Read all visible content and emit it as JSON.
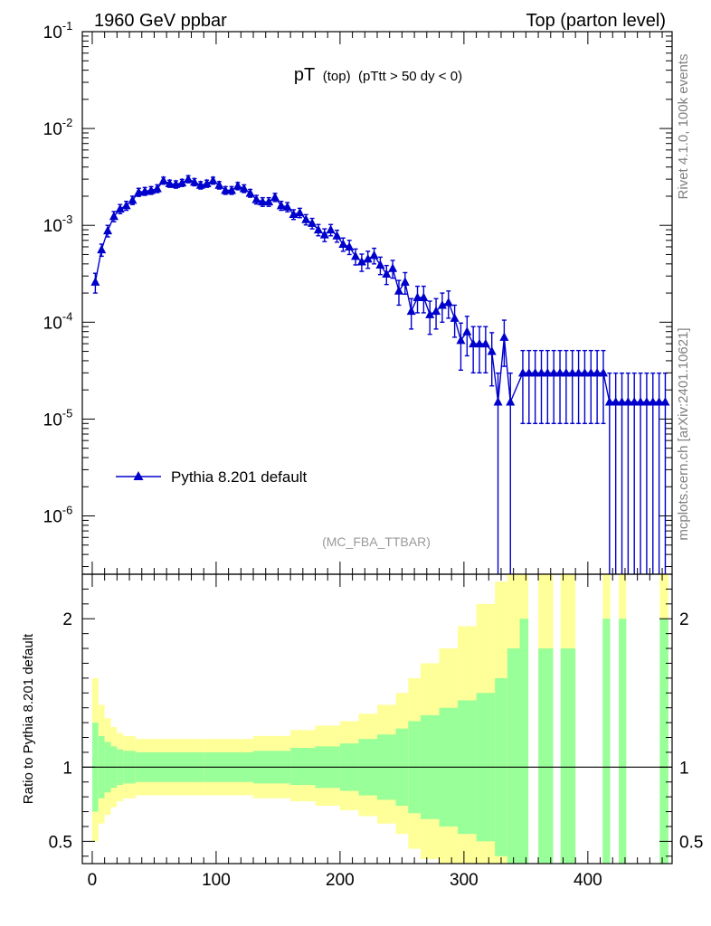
{
  "header": {
    "left": "1960 GeV ppbar",
    "right": "Top (parton level)"
  },
  "side_labels": {
    "rivet": "Rivet 4.1.0,  100k events",
    "mcplots": "mcplots.cern.ch [arXiv:2401.10621]"
  },
  "analysis_tag": "(MC_FBA_TTBAR)",
  "colors": {
    "series": "#0000cc",
    "band_inner": "#99ff99",
    "band_outer": "#ffff99",
    "axis": "#000000",
    "side_text": "#808080"
  },
  "chart_data": [
    {
      "type": "line",
      "title_main": "pT",
      "title_sub": "(top)",
      "title_cut": "(pTtt > 50 dy < 0)",
      "xlabel": "",
      "ylabel": "",
      "yscale": "log",
      "xlim": [
        -8,
        468
      ],
      "ylim": [
        2.5e-07,
        0.1
      ],
      "ytick_labels": [
        "10^-6",
        "10^-5",
        "10^-4",
        "10^-3",
        "10^-2",
        "10^-1"
      ],
      "legend": {
        "label": "Pythia 8.201 default",
        "position": "lower-left"
      },
      "series": [
        {
          "name": "Pythia 8.201 default",
          "points": [
            [
              2.5,
              0.00026,
              6e-05
            ],
            [
              7.5,
              0.00056,
              8e-05
            ],
            [
              12.5,
              0.00088,
              0.00012
            ],
            [
              17.5,
              0.00124,
              0.00015
            ],
            [
              22.5,
              0.00148,
              0.00016
            ],
            [
              27.5,
              0.0016,
              0.00017
            ],
            [
              32.5,
              0.00182,
              0.00018
            ],
            [
              37.5,
              0.0022,
              0.00021
            ],
            [
              42.5,
              0.00225,
              0.00021
            ],
            [
              47.5,
              0.0023,
              0.00021
            ],
            [
              52.5,
              0.0024,
              0.00022
            ],
            [
              57.5,
              0.0029,
              0.00024
            ],
            [
              62.5,
              0.0027,
              0.00023
            ],
            [
              67.5,
              0.00265,
              0.00023
            ],
            [
              72.5,
              0.00275,
              0.00023
            ],
            [
              77.5,
              0.003,
              0.00025
            ],
            [
              82.5,
              0.0028,
              0.00024
            ],
            [
              87.5,
              0.0026,
              0.00023
            ],
            [
              92.5,
              0.0027,
              0.00023
            ],
            [
              97.5,
              0.0029,
              0.00024
            ],
            [
              102.5,
              0.0026,
              0.00023
            ],
            [
              107.5,
              0.0023,
              0.00021
            ],
            [
              112.5,
              0.0023,
              0.00021
            ],
            [
              117.5,
              0.00255,
              0.00022
            ],
            [
              122.5,
              0.0024,
              0.00022
            ],
            [
              127.5,
              0.00215,
              0.0002
            ],
            [
              132.5,
              0.00185,
              0.00019
            ],
            [
              137.5,
              0.00175,
              0.00018
            ],
            [
              142.5,
              0.00175,
              0.00018
            ],
            [
              147.5,
              0.00195,
              0.00019
            ],
            [
              152.5,
              0.0016,
              0.00017
            ],
            [
              157.5,
              0.00155,
              0.00017
            ],
            [
              162.5,
              0.0013,
              0.00015
            ],
            [
              167.5,
              0.00135,
              0.00015
            ],
            [
              172.5,
              0.00115,
              0.00014
            ],
            [
              177.5,
              0.00105,
              0.00013
            ],
            [
              182.5,
              0.0009,
              0.00012
            ],
            [
              187.5,
              0.0008,
              0.00012
            ],
            [
              192.5,
              0.0009,
              0.00012
            ],
            [
              197.5,
              0.00078,
              0.00011
            ],
            [
              202.5,
              0.00064,
              0.0001
            ],
            [
              207.5,
              0.0006,
              0.0001
            ],
            [
              212.5,
              0.00048,
              9e-05
            ],
            [
              217.5,
              0.00042,
              8.5e-05
            ],
            [
              222.5,
              0.00045,
              9e-05
            ],
            [
              227.5,
              0.00049,
              9e-05
            ],
            [
              232.5,
              0.00039,
              8e-05
            ],
            [
              237.5,
              0.000315,
              7e-05
            ],
            [
              242.5,
              0.00036,
              7.5e-05
            ],
            [
              247.5,
              0.00021,
              6e-05
            ],
            [
              252.5,
              0.00026,
              6.5e-05
            ],
            [
              257.5,
              0.00013,
              4.5e-05
            ],
            [
              262.5,
              0.00018,
              5.5e-05
            ],
            [
              267.5,
              0.00018,
              5.5e-05
            ],
            [
              272.5,
              0.00012,
              4.5e-05
            ],
            [
              277.5,
              0.00013,
              4.5e-05
            ],
            [
              282.5,
              0.00015,
              5e-05
            ],
            [
              287.5,
              0.00016,
              5e-05
            ],
            [
              292.5,
              0.00011,
              4e-05
            ],
            [
              297.5,
              6.5e-05,
              3.3e-05
            ],
            [
              302.5,
              8e-05,
              3.5e-05
            ],
            [
              307.5,
              6e-05,
              3e-05
            ],
            [
              312.5,
              6e-05,
              3e-05
            ],
            [
              317.5,
              6e-05,
              3e-05
            ],
            [
              322.5,
              5e-05,
              2.8e-05
            ],
            [
              327.5,
              1.5e-05,
              1.48e-05
            ],
            [
              332.5,
              7e-05,
              3.5e-05
            ],
            [
              337.5,
              1.5e-05,
              1.48e-05
            ],
            [
              347.5,
              3e-05,
              2.1e-05
            ],
            [
              352.5,
              3e-05,
              2.1e-05
            ],
            [
              357.5,
              3e-05,
              2.1e-05
            ],
            [
              362.5,
              3e-05,
              2.1e-05
            ],
            [
              367.5,
              3e-05,
              2.1e-05
            ],
            [
              372.5,
              3e-05,
              2.1e-05
            ],
            [
              377.5,
              3e-05,
              2.1e-05
            ],
            [
              382.5,
              3e-05,
              2.1e-05
            ],
            [
              387.5,
              3e-05,
              2.1e-05
            ],
            [
              392.5,
              3e-05,
              2.1e-05
            ],
            [
              397.5,
              3e-05,
              2.1e-05
            ],
            [
              402.5,
              3e-05,
              2.1e-05
            ],
            [
              407.5,
              3e-05,
              2.1e-05
            ],
            [
              412.5,
              3e-05,
              2.1e-05
            ],
            [
              417.5,
              1.5e-05,
              1.48e-05
            ],
            [
              422.5,
              1.5e-05,
              1.48e-05
            ],
            [
              427.5,
              1.5e-05,
              1.48e-05
            ],
            [
              432.5,
              1.5e-05,
              1.48e-05
            ],
            [
              437.5,
              1.5e-05,
              1.48e-05
            ],
            [
              442.5,
              1.5e-05,
              1.48e-05
            ],
            [
              447.5,
              1.5e-05,
              1.48e-05
            ],
            [
              452.5,
              1.5e-05,
              1.48e-05
            ],
            [
              457.5,
              1.5e-05,
              1.48e-05
            ],
            [
              462.5,
              1.5e-05,
              1.48e-05
            ]
          ]
        }
      ]
    },
    {
      "type": "area",
      "ylabel": "Ratio to Pythia 8.201 default",
      "xlabel": "",
      "xlim": [
        -8,
        468
      ],
      "ylim": [
        0.35,
        2.3
      ],
      "xticks": [
        0,
        100,
        200,
        300,
        400
      ],
      "yticks": [
        0.5,
        1,
        2
      ],
      "ytick_labels": [
        "0.5",
        "1",
        "2"
      ],
      "reference_line": 1,
      "bins": [
        {
          "x": [
            0,
            5
          ],
          "inner": [
            0.7,
            1.3
          ],
          "outer": [
            0.5,
            1.6
          ]
        },
        {
          "x": [
            5,
            10
          ],
          "inner": [
            0.79,
            1.21
          ],
          "outer": [
            0.62,
            1.42
          ]
        },
        {
          "x": [
            10,
            15
          ],
          "inner": [
            0.83,
            1.17
          ],
          "outer": [
            0.68,
            1.33
          ]
        },
        {
          "x": [
            15,
            20
          ],
          "inner": [
            0.86,
            1.14
          ],
          "outer": [
            0.73,
            1.27
          ]
        },
        {
          "x": [
            20,
            25
          ],
          "inner": [
            0.88,
            1.12
          ],
          "outer": [
            0.77,
            1.23
          ]
        },
        {
          "x": [
            25,
            35
          ],
          "inner": [
            0.89,
            1.11
          ],
          "outer": [
            0.79,
            1.21
          ]
        },
        {
          "x": [
            35,
            90
          ],
          "inner": [
            0.9,
            1.1
          ],
          "outer": [
            0.81,
            1.19
          ]
        },
        {
          "x": [
            90,
            130
          ],
          "inner": [
            0.9,
            1.1
          ],
          "outer": [
            0.81,
            1.19
          ]
        },
        {
          "x": [
            130,
            160
          ],
          "inner": [
            0.89,
            1.11
          ],
          "outer": [
            0.79,
            1.21
          ]
        },
        {
          "x": [
            160,
            180
          ],
          "inner": [
            0.88,
            1.13
          ],
          "outer": [
            0.77,
            1.25
          ]
        },
        {
          "x": [
            180,
            200
          ],
          "inner": [
            0.86,
            1.14
          ],
          "outer": [
            0.74,
            1.28
          ]
        },
        {
          "x": [
            200,
            215
          ],
          "inner": [
            0.84,
            1.16
          ],
          "outer": [
            0.71,
            1.31
          ]
        },
        {
          "x": [
            215,
            230
          ],
          "inner": [
            0.81,
            1.19
          ],
          "outer": [
            0.67,
            1.36
          ]
        },
        {
          "x": [
            230,
            245
          ],
          "inner": [
            0.78,
            1.22
          ],
          "outer": [
            0.62,
            1.42
          ]
        },
        {
          "x": [
            245,
            255
          ],
          "inner": [
            0.74,
            1.26
          ],
          "outer": [
            0.55,
            1.5
          ]
        },
        {
          "x": [
            255,
            265
          ],
          "inner": [
            0.69,
            1.31
          ],
          "outer": [
            0.45,
            1.6
          ]
        },
        {
          "x": [
            265,
            280
          ],
          "inner": [
            0.65,
            1.35
          ],
          "outer": [
            0.38,
            1.7
          ]
        },
        {
          "x": [
            280,
            295
          ],
          "inner": [
            0.6,
            1.4
          ],
          "outer": [
            0.35,
            1.8
          ]
        },
        {
          "x": [
            295,
            310
          ],
          "inner": [
            0.55,
            1.45
          ],
          "outer": [
            0.35,
            1.95
          ]
        },
        {
          "x": [
            310,
            325
          ],
          "inner": [
            0.5,
            1.5
          ],
          "outer": [
            0.35,
            2.1
          ]
        },
        {
          "x": [
            325,
            335
          ],
          "inner": [
            0.4,
            1.6
          ],
          "outer": [
            0.35,
            2.25
          ]
        },
        {
          "x": [
            335,
            345
          ],
          "inner": [
            0.35,
            1.8
          ],
          "outer": [
            0.35,
            2.3
          ]
        },
        {
          "x": [
            345,
            352
          ],
          "inner": [
            0.35,
            2.0
          ],
          "outer": [
            0.35,
            2.3
          ]
        },
        {
          "x": [
            360,
            372
          ],
          "inner": [
            0.35,
            1.8
          ],
          "outer": [
            0.35,
            2.3
          ]
        },
        {
          "x": [
            378,
            390
          ],
          "inner": [
            0.35,
            1.8
          ],
          "outer": [
            0.35,
            2.3
          ]
        },
        {
          "x": [
            412,
            418
          ],
          "inner": [
            0.35,
            2.0
          ],
          "outer": [
            0.35,
            2.3
          ]
        },
        {
          "x": [
            425,
            431
          ],
          "inner": [
            0.35,
            2.0
          ],
          "outer": [
            0.35,
            2.3
          ]
        },
        {
          "x": [
            458,
            465
          ],
          "inner": [
            0.35,
            2.0
          ],
          "outer": [
            0.35,
            2.3
          ]
        }
      ]
    }
  ]
}
